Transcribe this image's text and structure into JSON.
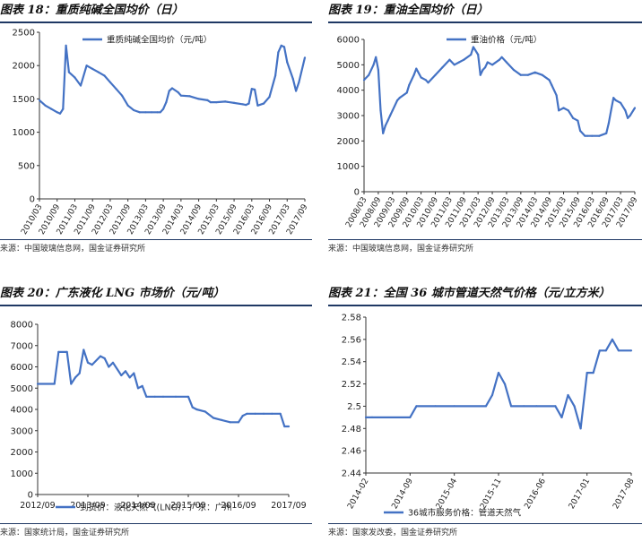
{
  "colors": {
    "line": "#4472c4",
    "rule": "#1f3864",
    "axis": "#333333"
  },
  "panels": [
    {
      "title": "图表 18：重质纯碱全国均价（日）",
      "source": "来源：中国玻璃信息网，国金证券研究所",
      "legend_label": "重质纯碱全国均价（元/吨）",
      "legend_pos": "top",
      "x_labels": [
        "2010/03",
        "2010/09",
        "2011/03",
        "2011/09",
        "2012/03",
        "2012/09",
        "2013/03",
        "2013/09",
        "2014/03",
        "2014/09",
        "2015/03",
        "2015/09",
        "2016/03",
        "2016/09",
        "2017/03",
        "2017/09"
      ],
      "x_rotated": true,
      "y_ticks": [
        0,
        500,
        1000,
        1500,
        2000,
        2500
      ],
      "y_min": 0,
      "y_max": 2500
    },
    {
      "title": "图表 19：重油全国均价（日）",
      "source": "来源：中国玻璃信息网，国金证券研究所",
      "legend_label": "重油价格（元/吨）",
      "legend_pos": "top",
      "x_labels": [
        "2008/03",
        "2008/09",
        "2009/03",
        "2009/09",
        "2010/03",
        "2010/09",
        "2011/03",
        "2011/09",
        "2012/03",
        "2012/09",
        "2013/03",
        "2013/09",
        "2014/03",
        "2014/09",
        "2015/03",
        "2015/09",
        "2016/03",
        "2016/09",
        "2017/03",
        "2017/09"
      ],
      "x_rotated": true,
      "y_ticks": [
        0,
        1000,
        2000,
        3000,
        4000,
        5000,
        6000
      ],
      "y_min": 0,
      "y_max": 6000
    },
    {
      "title": "图表 20：广东液化 LNG 市场价（元/吨）",
      "source": "来源：国家统计局，国金证券研究所",
      "legend_label": "到货价：液化天然气(LNG)：广东：广州",
      "legend_pos": "bottom",
      "x_labels": [
        "2012/09",
        "2013/09",
        "2014/09",
        "2015/09",
        "2016/09",
        "2017/09"
      ],
      "x_rotated": false,
      "y_ticks": [
        0,
        1000,
        2000,
        3000,
        4000,
        5000,
        6000,
        7000,
        8000
      ],
      "y_min": 0,
      "y_max": 8000
    },
    {
      "title": "图表 21：全国 36 城市管道天然气价格（元/立方米）",
      "source": "来源：国家发改委，国金证券研究所",
      "legend_label": "36城市服务价格：管道天然气",
      "legend_pos": "bottom",
      "x_labels": [
        "2014-02",
        "2014-09",
        "2015-04",
        "2015-11",
        "2016-06",
        "2017-01",
        "2017-08"
      ],
      "x_rotated": true,
      "y_ticks": [
        "2.44",
        "2.46",
        "2.48",
        "2.5",
        "2.52",
        "2.54",
        "2.56",
        "2.58"
      ],
      "y_min": 2.44,
      "y_max": 2.58
    }
  ],
  "chart_data": [
    {
      "type": "line",
      "title": "图表 18：重质纯碱全国均价（日）",
      "xlabel": "",
      "ylabel": "",
      "x_start": "2010/03",
      "x_end": "2017/09",
      "ylim": [
        0,
        2500
      ],
      "grid": false,
      "legend": "top",
      "series": [
        {
          "name": "重质纯碱全国均价（元/吨）",
          "x": [
            "2010/03",
            "2010/05",
            "2010/07",
            "2010/09",
            "2010/10",
            "2010/11",
            "2010/12",
            "2011/01",
            "2011/03",
            "2011/05",
            "2011/07",
            "2011/09",
            "2011/11",
            "2012/01",
            "2012/03",
            "2012/05",
            "2012/07",
            "2012/09",
            "2012/11",
            "2013/01",
            "2013/03",
            "2013/05",
            "2013/07",
            "2013/08",
            "2013/09",
            "2013/10",
            "2013/11",
            "2013/12",
            "2014/02",
            "2014/03",
            "2014/06",
            "2014/09",
            "2014/12",
            "2015/01",
            "2015/03",
            "2015/06",
            "2015/09",
            "2015/12",
            "2016/01",
            "2016/02",
            "2016/03",
            "2016/04",
            "2016/05",
            "2016/07",
            "2016/09",
            "2016/11",
            "2016/12",
            "2017/01",
            "2017/02",
            "2017/03",
            "2017/05",
            "2017/06",
            "2017/07",
            "2017/09"
          ],
          "y": [
            1480,
            1400,
            1350,
            1300,
            1280,
            1350,
            2300,
            1900,
            1820,
            1700,
            2000,
            1950,
            1900,
            1850,
            1750,
            1650,
            1550,
            1400,
            1330,
            1300,
            1300,
            1300,
            1300,
            1300,
            1350,
            1450,
            1620,
            1660,
            1600,
            1550,
            1540,
            1500,
            1480,
            1450,
            1450,
            1460,
            1440,
            1420,
            1410,
            1430,
            1650,
            1640,
            1400,
            1430,
            1530,
            1850,
            2200,
            2300,
            2280,
            2050,
            1800,
            1620,
            1750,
            2120
          ]
        }
      ]
    },
    {
      "type": "line",
      "title": "图表 19：重油全国均价（日）",
      "xlabel": "",
      "ylabel": "",
      "x_start": "2008/03",
      "x_end": "2017/09",
      "ylim": [
        0,
        6000
      ],
      "grid": false,
      "legend": "top",
      "series": [
        {
          "name": "重油价格（元/吨）",
          "x": [
            "2008/03",
            "2008/05",
            "2008/07",
            "2008/08",
            "2008/09",
            "2008/10",
            "2008/11",
            "2008/12",
            "2009/01",
            "2009/02",
            "2009/03",
            "2009/05",
            "2009/06",
            "2009/09",
            "2009/10",
            "2009/12",
            "2010/01",
            "2010/03",
            "2010/05",
            "2010/06",
            "2010/09",
            "2010/12",
            "2011/03",
            "2011/05",
            "2011/07",
            "2011/09",
            "2011/12",
            "2012/01",
            "2012/03",
            "2012/04",
            "2012/05",
            "2012/06",
            "2012/07",
            "2012/09",
            "2012/12",
            "2013/01",
            "2013/03",
            "2013/06",
            "2013/09",
            "2013/12",
            "2014/03",
            "2014/06",
            "2014/09",
            "2014/10",
            "2014/12",
            "2015/01",
            "2015/03",
            "2015/05",
            "2015/07",
            "2015/09",
            "2015/10",
            "2015/12",
            "2016/01",
            "2016/03",
            "2016/06",
            "2016/09",
            "2016/10",
            "2016/11",
            "2016/12",
            "2017/01",
            "2017/03",
            "2017/05",
            "2017/06",
            "2017/07",
            "2017/09"
          ],
          "y": [
            4400,
            4600,
            5000,
            5300,
            4800,
            3200,
            2300,
            2600,
            2800,
            3000,
            3200,
            3600,
            3700,
            3900,
            4200,
            4600,
            4850,
            4500,
            4400,
            4300,
            4600,
            4900,
            5200,
            5000,
            5100,
            5200,
            5400,
            5700,
            5400,
            4600,
            4800,
            4900,
            5100,
            5000,
            5200,
            5300,
            5100,
            4800,
            4600,
            4600,
            4700,
            4600,
            4400,
            4200,
            3800,
            3200,
            3300,
            3200,
            2900,
            2800,
            2400,
            2200,
            2200,
            2200,
            2200,
            2300,
            2700,
            3200,
            3700,
            3600,
            3500,
            3200,
            2900,
            3000,
            3300
          ]
        }
      ]
    },
    {
      "type": "line",
      "title": "图表 20：广东液化 LNG 市场价（元/吨）",
      "xlabel": "",
      "ylabel": "",
      "x_start": "2012/09",
      "x_end": "2017/09",
      "ylim": [
        0,
        8000
      ],
      "grid": false,
      "legend": "bottom",
      "series": [
        {
          "name": "到货价：液化天然气(LNG)：广东：广州",
          "x": [
            "2012/09",
            "2013/01",
            "2013/02",
            "2013/04",
            "2013/05",
            "2013/06",
            "2013/07",
            "2013/08",
            "2013/09",
            "2013/10",
            "2013/12",
            "2014/01",
            "2014/02",
            "2014/03",
            "2014/05",
            "2014/06",
            "2014/07",
            "2014/08",
            "2014/09",
            "2014/10",
            "2014/11",
            "2015/01",
            "2015/03",
            "2015/06",
            "2015/09",
            "2015/10",
            "2015/11",
            "2016/01",
            "2016/03",
            "2016/05",
            "2016/07",
            "2016/09",
            "2016/10",
            "2016/11",
            "2017/01",
            "2017/03",
            "2017/05",
            "2017/07",
            "2017/08",
            "2017/09"
          ],
          "y": [
            5200,
            5200,
            6700,
            6700,
            5200,
            5500,
            5700,
            6800,
            6200,
            6100,
            6500,
            6400,
            6000,
            6200,
            5600,
            5800,
            5500,
            5700,
            5000,
            5100,
            4600,
            4600,
            4600,
            4600,
            4600,
            4100,
            4000,
            3900,
            3600,
            3500,
            3400,
            3400,
            3700,
            3800,
            3800,
            3800,
            3800,
            3800,
            3200,
            3200
          ]
        }
      ]
    },
    {
      "type": "line",
      "title": "图表 21：全国 36 城市管道天然气价格（元/立方米）",
      "xlabel": "",
      "ylabel": "",
      "x_start": "2014-02",
      "x_end": "2017-08",
      "ylim": [
        2.44,
        2.58
      ],
      "grid": false,
      "legend": "bottom",
      "series": [
        {
          "name": "36城市服务价格：管道天然气",
          "x": [
            "2014-02",
            "2014-03",
            "2014-09",
            "2014-10",
            "2015-01",
            "2015-04",
            "2015-09",
            "2015-10",
            "2015-11",
            "2015-12",
            "2016-01",
            "2016-03",
            "2016-05",
            "2016-08",
            "2016-09",
            "2016-10",
            "2016-11",
            "2016-12",
            "2017-01",
            "2017-02",
            "2017-03",
            "2017-04",
            "2017-05",
            "2017-06",
            "2017-08"
          ],
          "y": [
            2.49,
            2.49,
            2.49,
            2.5,
            2.5,
            2.5,
            2.5,
            2.51,
            2.53,
            2.52,
            2.5,
            2.5,
            2.5,
            2.5,
            2.49,
            2.51,
            2.5,
            2.48,
            2.53,
            2.53,
            2.55,
            2.55,
            2.56,
            2.55,
            2.55
          ]
        }
      ]
    }
  ]
}
